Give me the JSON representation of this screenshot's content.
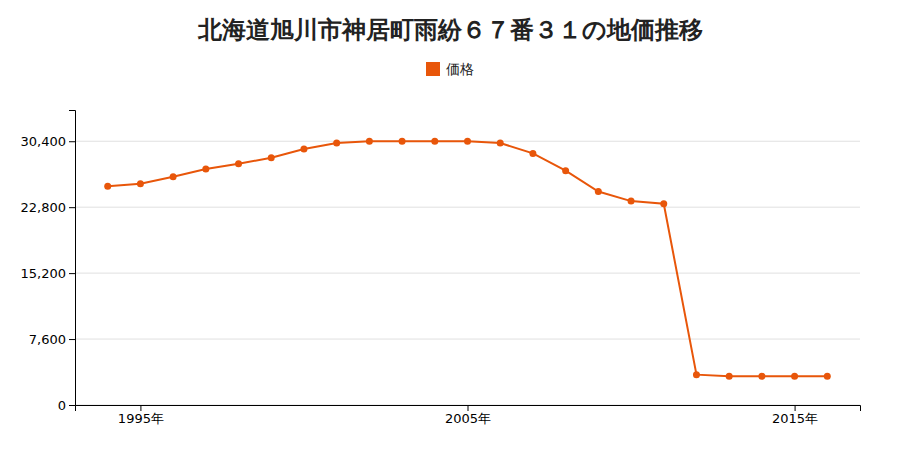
{
  "chart_data": {
    "type": "line",
    "title": "北海道旭川市神居町雨紛６７番３１の地価推移",
    "x": [
      1994,
      1995,
      1996,
      1997,
      1998,
      1999,
      2000,
      2001,
      2002,
      2003,
      2004,
      2005,
      2006,
      2007,
      2008,
      2009,
      2010,
      2011,
      2012,
      2013,
      2014,
      2015,
      2016
    ],
    "series": [
      {
        "name": "価格",
        "color": "#e8560a",
        "marker": "circle",
        "values": [
          25200,
          25500,
          26300,
          27200,
          27800,
          28500,
          29500,
          30200,
          30400,
          30400,
          30400,
          30400,
          30200,
          29000,
          27000,
          24600,
          23500,
          23200,
          3500,
          3300,
          3300,
          3300,
          3300
        ]
      }
    ],
    "xlim": [
      1993,
      2017
    ],
    "xticks": [
      {
        "value": 1995,
        "label": "1995年"
      },
      {
        "value": 2005,
        "label": "2005年"
      },
      {
        "value": 2015,
        "label": "2015年"
      }
    ],
    "ylim": [
      0,
      34000
    ],
    "yticks": [
      0,
      {
        "value": 7600,
        "label": "7,600"
      },
      {
        "value": 15200,
        "label": "15,200"
      },
      {
        "value": 22800,
        "label": "22,800"
      },
      {
        "value": 30400,
        "label": "30,400"
      }
    ],
    "grid": true,
    "legend": "top"
  }
}
